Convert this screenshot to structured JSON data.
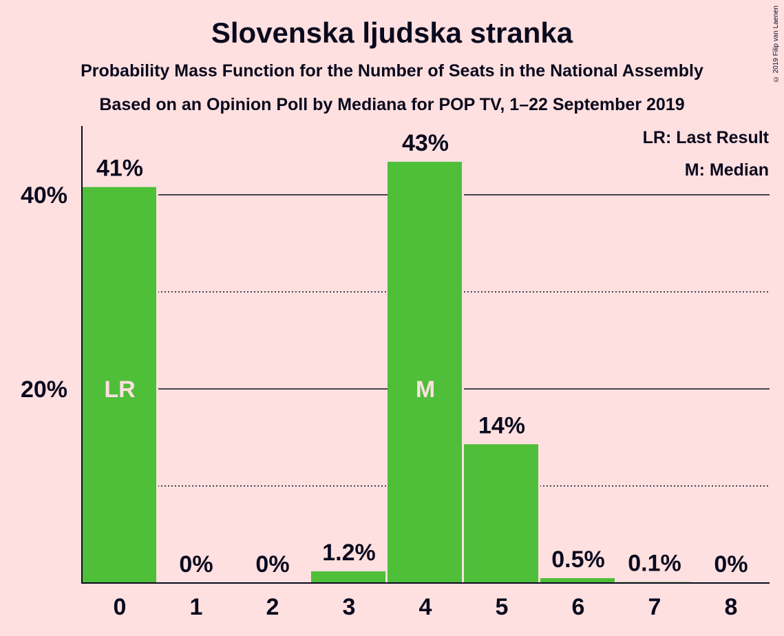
{
  "header": {
    "title": "Slovenska ljudska stranka",
    "subtitle": "Probability Mass Function for the Number of Seats in the National Assembly",
    "subtitle2": "Based on an Opinion Poll by Mediana for POP TV, 1–22 September 2019",
    "copyright": "© 2019 Filip van Laenen"
  },
  "legend": {
    "last_result": "LR: Last Result",
    "median": "M: Median"
  },
  "chart_data": {
    "type": "bar",
    "categories": [
      "0",
      "1",
      "2",
      "3",
      "4",
      "5",
      "6",
      "7",
      "8"
    ],
    "values": [
      40.8,
      0,
      0,
      1.2,
      43.4,
      14.3,
      0.5,
      0.1,
      0
    ],
    "value_labels": [
      "41%",
      "0%",
      "0%",
      "1.2%",
      "43%",
      "14%",
      "0.5%",
      "0.1%",
      "0%"
    ],
    "bar_markers": {
      "0": "LR",
      "4": "M"
    },
    "yticks": [
      20,
      40
    ],
    "ytick_labels": [
      "20%",
      "40%"
    ],
    "dotted_gridlines": [
      10,
      30
    ],
    "ylim": [
      0,
      47.2
    ],
    "colors": {
      "bar": "#4FBE39",
      "background": "#FFE0E0",
      "text": "#0A0A1E",
      "marker_text": "#FFE0E0"
    }
  }
}
